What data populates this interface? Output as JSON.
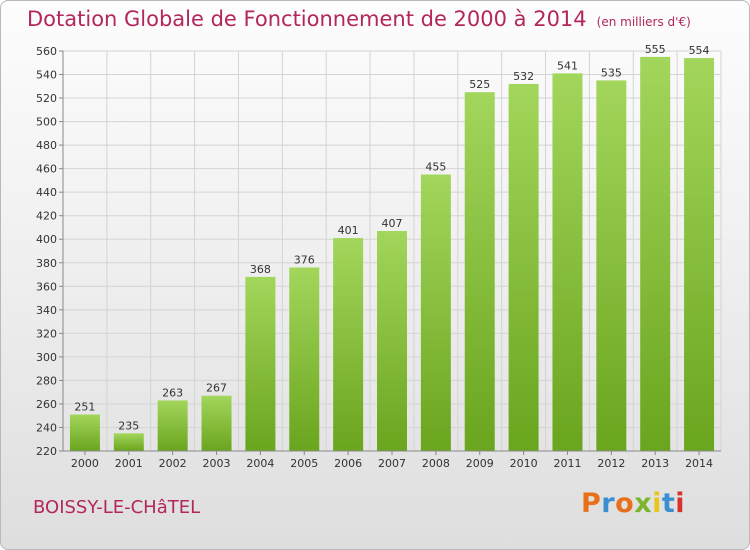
{
  "header": {
    "title": "Dotation Globale de Fonctionnement de 2000 à 2014",
    "subtitle": "(en milliers d'€)"
  },
  "footer": {
    "commune": "BOISSY-LE-CHâTEL",
    "logo_text": "Proxiti",
    "logo_colors": [
      "#e8701c",
      "#3a8fd0",
      "#e8701c",
      "#7bb52c",
      "#e8c61c",
      "#3a8fd0",
      "#d8322c"
    ]
  },
  "colors": {
    "bar_light": "#a3d65c",
    "bar_dark": "#6aa51e",
    "grid": "#d4d4d4",
    "accent": "#b3265e"
  },
  "chart_data": {
    "type": "bar",
    "title": "Dotation Globale de Fonctionnement de 2000 à 2014",
    "subtitle": "(en milliers d'€)",
    "xlabel": "",
    "ylabel": "",
    "categories": [
      "2000",
      "2001",
      "2002",
      "2003",
      "2004",
      "2005",
      "2006",
      "2007",
      "2008",
      "2009",
      "2010",
      "2011",
      "2012",
      "2013",
      "2014"
    ],
    "values": [
      251,
      235,
      263,
      267,
      368,
      376,
      401,
      407,
      455,
      525,
      532,
      541,
      535,
      555,
      554
    ],
    "ylim": [
      220,
      560
    ],
    "yticks": [
      220,
      240,
      260,
      280,
      300,
      320,
      340,
      360,
      380,
      400,
      420,
      440,
      460,
      480,
      500,
      520,
      540,
      560
    ],
    "grid": true,
    "data_labels": true
  }
}
